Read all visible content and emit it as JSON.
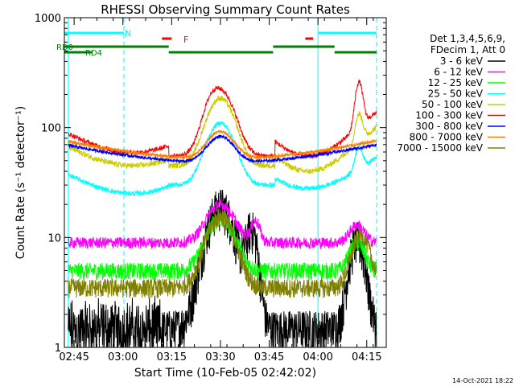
{
  "chart_data": {
    "type": "line",
    "title": "RHESSI Observing Summary Count Rates",
    "xlabel": "Start Time (10-Feb-05 02:42:02)",
    "ylabel": "Count Rate (s⁻¹ detector⁻¹)",
    "y_scale": "log",
    "ylim": [
      1,
      1000
    ],
    "xlim_minutes": [
      2.0,
      2.5,
      2.75,
      3.0,
      3.25,
      3.5,
      3.75,
      4.0,
      4.25
    ],
    "x_ticks": [
      {
        "t": 2.75,
        "label": "02:45"
      },
      {
        "t": 3.0,
        "label": "03:00"
      },
      {
        "t": 3.25,
        "label": "03:15"
      },
      {
        "t": 3.5,
        "label": "03:30"
      },
      {
        "t": 3.75,
        "label": "03:45"
      },
      {
        "t": 4.0,
        "label": "04:00"
      },
      {
        "t": 4.25,
        "label": "04:15"
      }
    ],
    "x_range": [
      "02:42",
      "04:21"
    ],
    "y_ticks": [
      {
        "v": 1,
        "label": "1"
      },
      {
        "v": 10,
        "label": "10"
      },
      {
        "v": 100,
        "label": "100"
      },
      {
        "v": 1000,
        "label": "1000"
      }
    ],
    "legend_header": [
      "Det 1,3,4,5,6,9,",
      "FDecim 1, Att 0"
    ],
    "legend_position": "right",
    "series": [
      {
        "name": "3 - 6 keV",
        "color": "#000000",
        "key": "s1"
      },
      {
        "name": "6 - 12 keV",
        "color": "#ff00ff",
        "key": "s2"
      },
      {
        "name": "12 - 25 keV",
        "color": "#00ff00",
        "key": "s3"
      },
      {
        "name": "25 - 50 keV",
        "color": "#00ffff",
        "key": "s4"
      },
      {
        "name": "50 - 100 keV",
        "color": "#cccc00",
        "key": "s5"
      },
      {
        "name": "100 - 300 keV",
        "color": "#ff0000",
        "key": "s6"
      },
      {
        "name": "300 - 800 keV",
        "color": "#0000ff",
        "key": "s7"
      },
      {
        "name": "800 - 7000 keV",
        "color": "#ff8000",
        "key": "s8"
      },
      {
        "name": "7000 - 15000 keV",
        "color": "#808000",
        "key": "s9"
      }
    ],
    "annotations": {
      "n_label": "N",
      "f_label": "F",
      "rd0_label": "RD0",
      "rd4_label": "RD4"
    },
    "timestamp": "14-Oct-2021 18:22"
  },
  "colors": {
    "axis": "#000000",
    "night": "#00ffff",
    "flare": "#ff0000",
    "rd": "#008000"
  }
}
